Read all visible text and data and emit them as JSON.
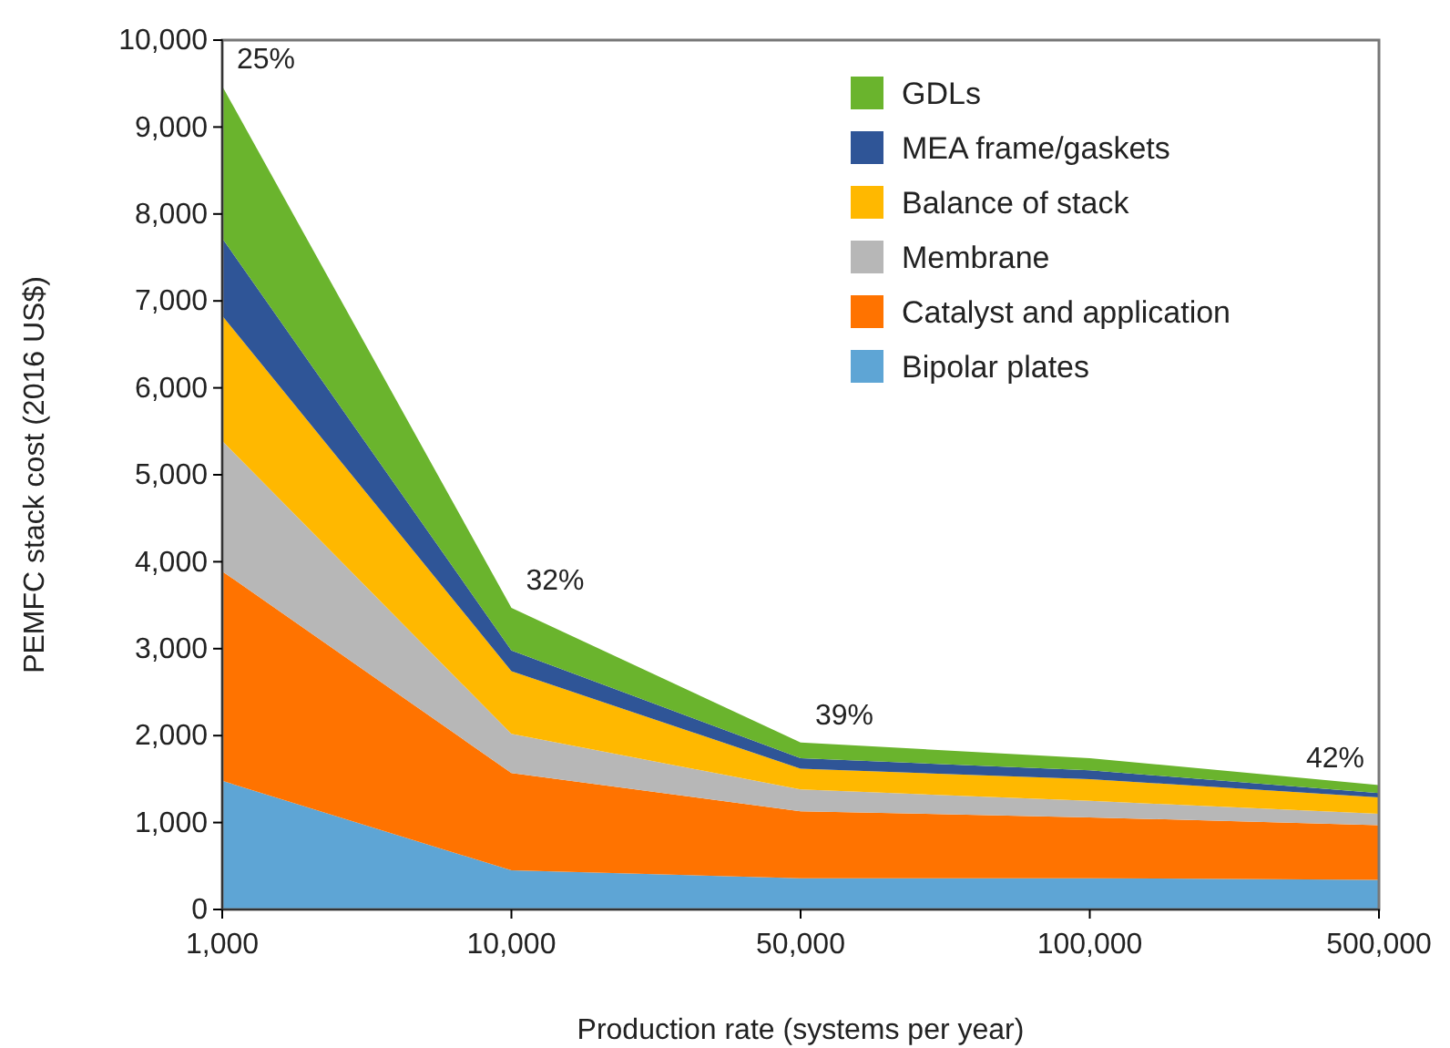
{
  "chart_data": {
    "type": "area",
    "stacked": true,
    "xlabel": "Production rate (systems per year)",
    "ylabel": "PEMFC stack cost (2016 US$)",
    "categories": [
      "1,000",
      "10,000",
      "50,000",
      "100,000",
      "500,000"
    ],
    "series": [
      {
        "name": "Bipolar plates",
        "color": "#5ea5d5",
        "values": [
          1480,
          450,
          360,
          360,
          340
        ]
      },
      {
        "name": "Catalyst and application",
        "color": "#ff7300",
        "values": [
          2410,
          1120,
          770,
          700,
          630
        ]
      },
      {
        "name": "Membrane",
        "color": "#b7b7b7",
        "values": [
          1500,
          450,
          250,
          190,
          130
        ]
      },
      {
        "name": "Balance of stack",
        "color": "#ffb800",
        "values": [
          1440,
          720,
          240,
          250,
          190
        ]
      },
      {
        "name": "MEA frame/gaskets",
        "color": "#2f5597",
        "values": [
          890,
          240,
          120,
          100,
          50
        ]
      },
      {
        "name": "GDLs",
        "color": "#6ab42d",
        "values": [
          1750,
          490,
          180,
          140,
          90
        ]
      }
    ],
    "ylim": [
      0,
      10000
    ],
    "yticks": [
      0,
      {
        "value": 1000,
        "label": "1,000"
      },
      {
        "value": 2000,
        "label": "2,000"
      },
      {
        "value": 3000,
        "label": "3,000"
      },
      {
        "value": 4000,
        "label": "4,000"
      },
      {
        "value": 5000,
        "label": "5,000"
      },
      {
        "value": 6000,
        "label": "6,000"
      },
      {
        "value": 7000,
        "label": "7,000"
      },
      {
        "value": 8000,
        "label": "8,000"
      },
      {
        "value": 9000,
        "label": "9,000"
      },
      {
        "value": 10000,
        "label": "10,000"
      }
    ],
    "grid": false,
    "legend": "top right",
    "annotations": [
      {
        "text": "25%",
        "x": "1,000",
        "y": 9470
      },
      {
        "text": "32%",
        "x": "10,000",
        "y": 3470
      },
      {
        "text": "39%",
        "x": "50,000",
        "y": 1920
      },
      {
        "text": "42%",
        "x": "500,000",
        "y": 1430
      }
    ]
  }
}
